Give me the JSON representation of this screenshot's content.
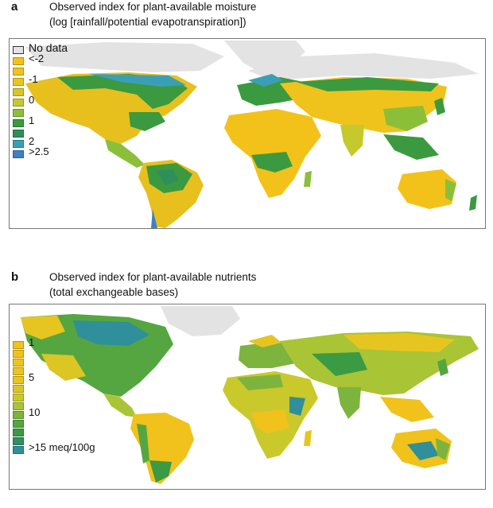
{
  "panel_a": {
    "letter": "a",
    "title_line1": "Observed index for plant-available moisture",
    "title_line2": "(log [rainfall/potential evapotranspiration])",
    "legend": [
      {
        "label": "No data",
        "color": "#e3e3e3"
      },
      {
        "label": "<-2",
        "color": "#f3c21a"
      },
      {
        "label": "",
        "color": "#efc31c"
      },
      {
        "label": "-1",
        "color": "#ebc51f"
      },
      {
        "label": "",
        "color": "#d9c525"
      },
      {
        "label": "0",
        "color": "#c5c92b"
      },
      {
        "label": "",
        "color": "#8bbf3a"
      },
      {
        "label": "1",
        "color": "#3b9a3f"
      },
      {
        "label": "",
        "color": "#2f8f5b"
      },
      {
        "label": "2",
        "color": "#3a9fb6"
      },
      {
        "label": ">2.5",
        "color": "#3f7fc7"
      }
    ]
  },
  "panel_b": {
    "letter": "b",
    "title_line1": "Observed index for plant-available nutrients",
    "title_line2": "(total exchangeable bases)",
    "legend": [
      {
        "label": "1",
        "color": "#f0c21b"
      },
      {
        "label": "",
        "color": "#f0c21b"
      },
      {
        "label": "",
        "color": "#efc31c"
      },
      {
        "label": "",
        "color": "#ecc41e"
      },
      {
        "label": "5",
        "color": "#e7c521"
      },
      {
        "label": "",
        "color": "#dcc624"
      },
      {
        "label": "",
        "color": "#c9c92b"
      },
      {
        "label": "",
        "color": "#a9c435"
      },
      {
        "label": "10",
        "color": "#7cb43d"
      },
      {
        "label": "",
        "color": "#55a640"
      },
      {
        "label": "",
        "color": "#3b9a44"
      },
      {
        "label": "",
        "color": "#2f8f62"
      },
      {
        "label": ">15 meq/100g",
        "color": "#2f8f9a"
      }
    ]
  },
  "colors": {
    "ice": "#e3e3e3",
    "dry": "#f3c21a",
    "mid": "#c5c92b",
    "green": "#3b9a3f",
    "wet": "#3f7fc7",
    "teal": "#2f8f9a"
  }
}
